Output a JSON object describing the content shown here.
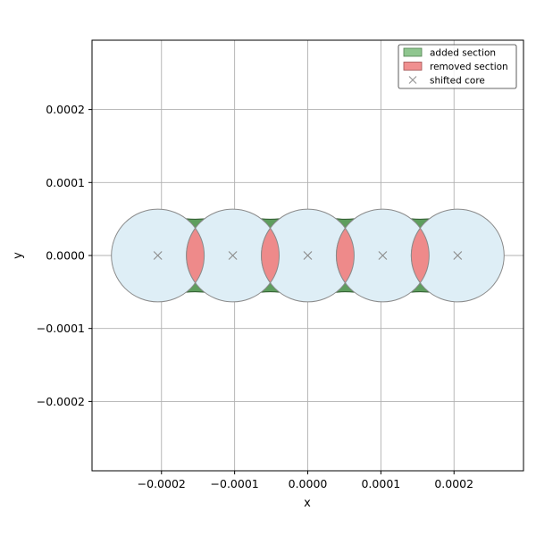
{
  "chart_data": {
    "type": "scatter",
    "title": "",
    "xlabel": "x",
    "ylabel": "y",
    "xlim": [
      -0.000295,
      0.000295
    ],
    "ylim": [
      -0.000295,
      0.000295
    ],
    "grid": true,
    "legend_position": "top-right",
    "x_ticks": [
      {
        "value": -0.0002,
        "label": "−0.0002"
      },
      {
        "value": -0.0001,
        "label": "−0.0001"
      },
      {
        "value": 0.0,
        "label": "0.0000"
      },
      {
        "value": 0.0001,
        "label": "0.0001"
      },
      {
        "value": 0.0002,
        "label": "0.0002"
      }
    ],
    "y_ticks": [
      {
        "value": -0.0002,
        "label": "−0.0002"
      },
      {
        "value": -0.0001,
        "label": "−0.0001"
      },
      {
        "value": 0.0,
        "label": "0.0000"
      },
      {
        "value": 0.0001,
        "label": "0.0001"
      },
      {
        "value": 0.0002,
        "label": "0.0002"
      }
    ],
    "core_radius": 6.35e-05,
    "cores": [
      {
        "x": -0.000205,
        "y": 0.0
      },
      {
        "x": -0.0001025,
        "y": 0.0
      },
      {
        "x": 0.0,
        "y": 0.0
      },
      {
        "x": 0.0001025,
        "y": 0.0
      },
      {
        "x": 0.000205,
        "y": 0.0
      }
    ],
    "added_section_halfwidth": 5.95e-05,
    "legend": [
      {
        "key": "added",
        "label": "added section",
        "marker": "patch",
        "color": "#8fc68f",
        "edge": "#4f7f4f"
      },
      {
        "key": "removed",
        "label": "removed section",
        "marker": "patch",
        "color": "#f09090",
        "edge": "#a05050"
      },
      {
        "key": "core",
        "label": "shifted core",
        "marker": "x",
        "color": "#999999"
      }
    ],
    "colors": {
      "core_fill": "#deeef6",
      "core_edge": "#8a8a8a",
      "added_fill": "#5e9e5e",
      "added_edge": "#2f5a2f",
      "removed_fill": "#ee8a8a",
      "removed_edge": "#8a8a8a",
      "marker": "#8f8f8f",
      "grid": "#b0b0b0"
    }
  }
}
